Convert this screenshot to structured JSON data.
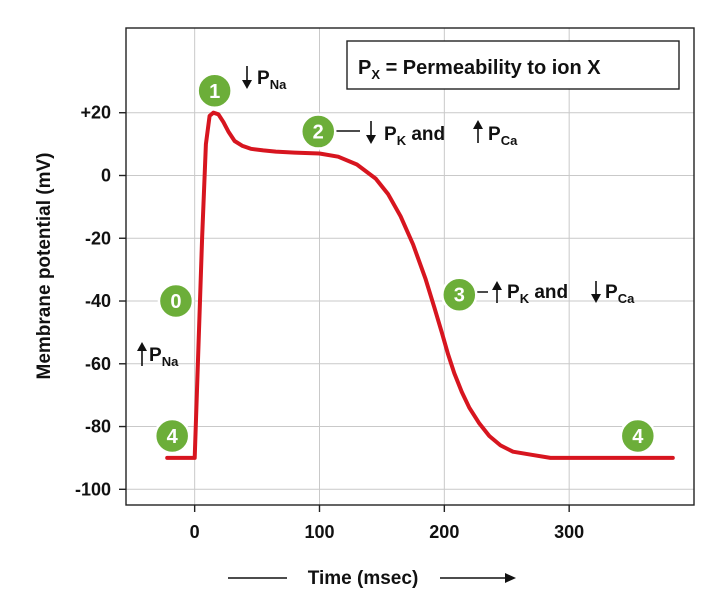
{
  "chart_data": {
    "type": "line",
    "title": "",
    "xlabel": "Time (msec)",
    "ylabel": "Membrane potential (mV)",
    "xlim": [
      -55,
      400
    ],
    "ylim": [
      -105,
      47
    ],
    "x_ticks": [
      0,
      100,
      200,
      300
    ],
    "x_tick_labels": [
      "0",
      "100",
      "200",
      "300"
    ],
    "y_ticks": [
      20,
      0,
      -20,
      -40,
      -60,
      -80,
      -100
    ],
    "y_tick_labels": [
      "+20",
      "0",
      "-20",
      "-40",
      "-60",
      "-80",
      "-100"
    ],
    "grid": true,
    "series": [
      {
        "color": "#d7151f",
        "x": [
          -22,
          0,
          3,
          6,
          9,
          12,
          15,
          19,
          23,
          27,
          32,
          38,
          45,
          55,
          65,
          80,
          100,
          115,
          130,
          145,
          155,
          165,
          175,
          185,
          192,
          198,
          203,
          208,
          214,
          220,
          228,
          236,
          245,
          255,
          270,
          285,
          300,
          330,
          360,
          383
        ],
        "y": [
          -90,
          -90,
          -55,
          -20,
          10,
          19,
          20,
          19.5,
          17,
          14,
          11,
          9.5,
          8.5,
          8,
          7.6,
          7.3,
          7,
          6,
          3.5,
          -1,
          -6,
          -13,
          -22,
          -33,
          -42,
          -50,
          -57,
          -63,
          -69,
          -74,
          -79,
          -83,
          -86,
          -88,
          -89,
          -90,
          -90,
          -90,
          -90,
          -90
        ]
      }
    ],
    "phase_badges": [
      {
        "label": "0",
        "x": -15,
        "y": -40
      },
      {
        "label": "1",
        "x": 16,
        "y": 27
      },
      {
        "label": "2",
        "x": 99,
        "y": 14
      },
      {
        "label": "3",
        "x": 212,
        "y": -38
      },
      {
        "label": "4",
        "x": -18,
        "y": -83
      },
      {
        "label": "4",
        "x": 355,
        "y": -83
      }
    ],
    "annotations": {
      "phase0": {
        "arrow": "up",
        "main": "P",
        "sub": "Na"
      },
      "phase1": {
        "arrow": "down",
        "main": "P",
        "sub": "Na"
      },
      "phase2": {
        "a1": "down",
        "main1": "P",
        "sub1": "K",
        "mid": " and ",
        "a2": "up",
        "main2": "P",
        "sub2": "Ca"
      },
      "phase3": {
        "a1": "up",
        "main1": "P",
        "sub1": "K",
        "mid": " and ",
        "a2": "down",
        "main2": "P",
        "sub2": "Ca"
      }
    },
    "legend": {
      "position": "top-right",
      "main": "P",
      "sub": "X",
      "text": " = Permeability to ion X"
    }
  }
}
